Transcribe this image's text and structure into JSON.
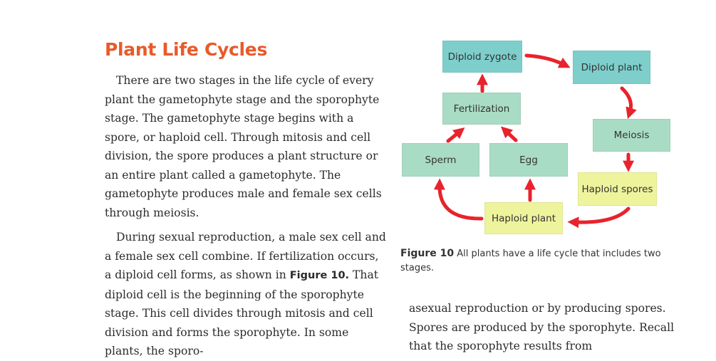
{
  "page": {
    "title": "Plant Life Cycles",
    "para1": "There are two stages in the life cycle of every plant the gametophyte stage and the sporophyte stage. The gametophyte stage begins with a spore, or haploid cell. Through mitosis and cell division, the spore produces a plant structure or an entire plant called a gametophyte. The gametophyte produces male and female sex cells through meiosis.",
    "para2_a": "During sexual reproduction, a male sex cell and a female sex cell combine. If fertilization occurs, a diploid cell forms, as shown in ",
    "para2_ref": "Figure 10.",
    "para2_b": " That diploid cell is the beginning of the sporophyte stage. This cell divides through mitosis and cell division and forms the sporophyte. In some plants, the sporo-",
    "para3": "asexual reproduction or by producing spores. Spores are produced by the sporophyte. Recall that the sporophyte results from"
  },
  "figure": {
    "nodes": {
      "diploid_zygote": "Diploid zygote",
      "diploid_plant": "Diploid plant",
      "fertilization": "Fertilization",
      "meiosis": "Meiosis",
      "sperm": "Sperm",
      "egg": "Egg",
      "haploid_spores": "Haploid spores",
      "haploid_plant": "Haploid plant"
    },
    "caption_label": "Figure 10",
    "caption_text": "All plants have a life cycle that includes two stages.",
    "colors": {
      "arrow": "#e8232c",
      "diploid_node": "#7ecfcc",
      "process_node": "#a9dcc4",
      "haploid_node": "#eef49c",
      "title": "#e85a2a"
    }
  }
}
